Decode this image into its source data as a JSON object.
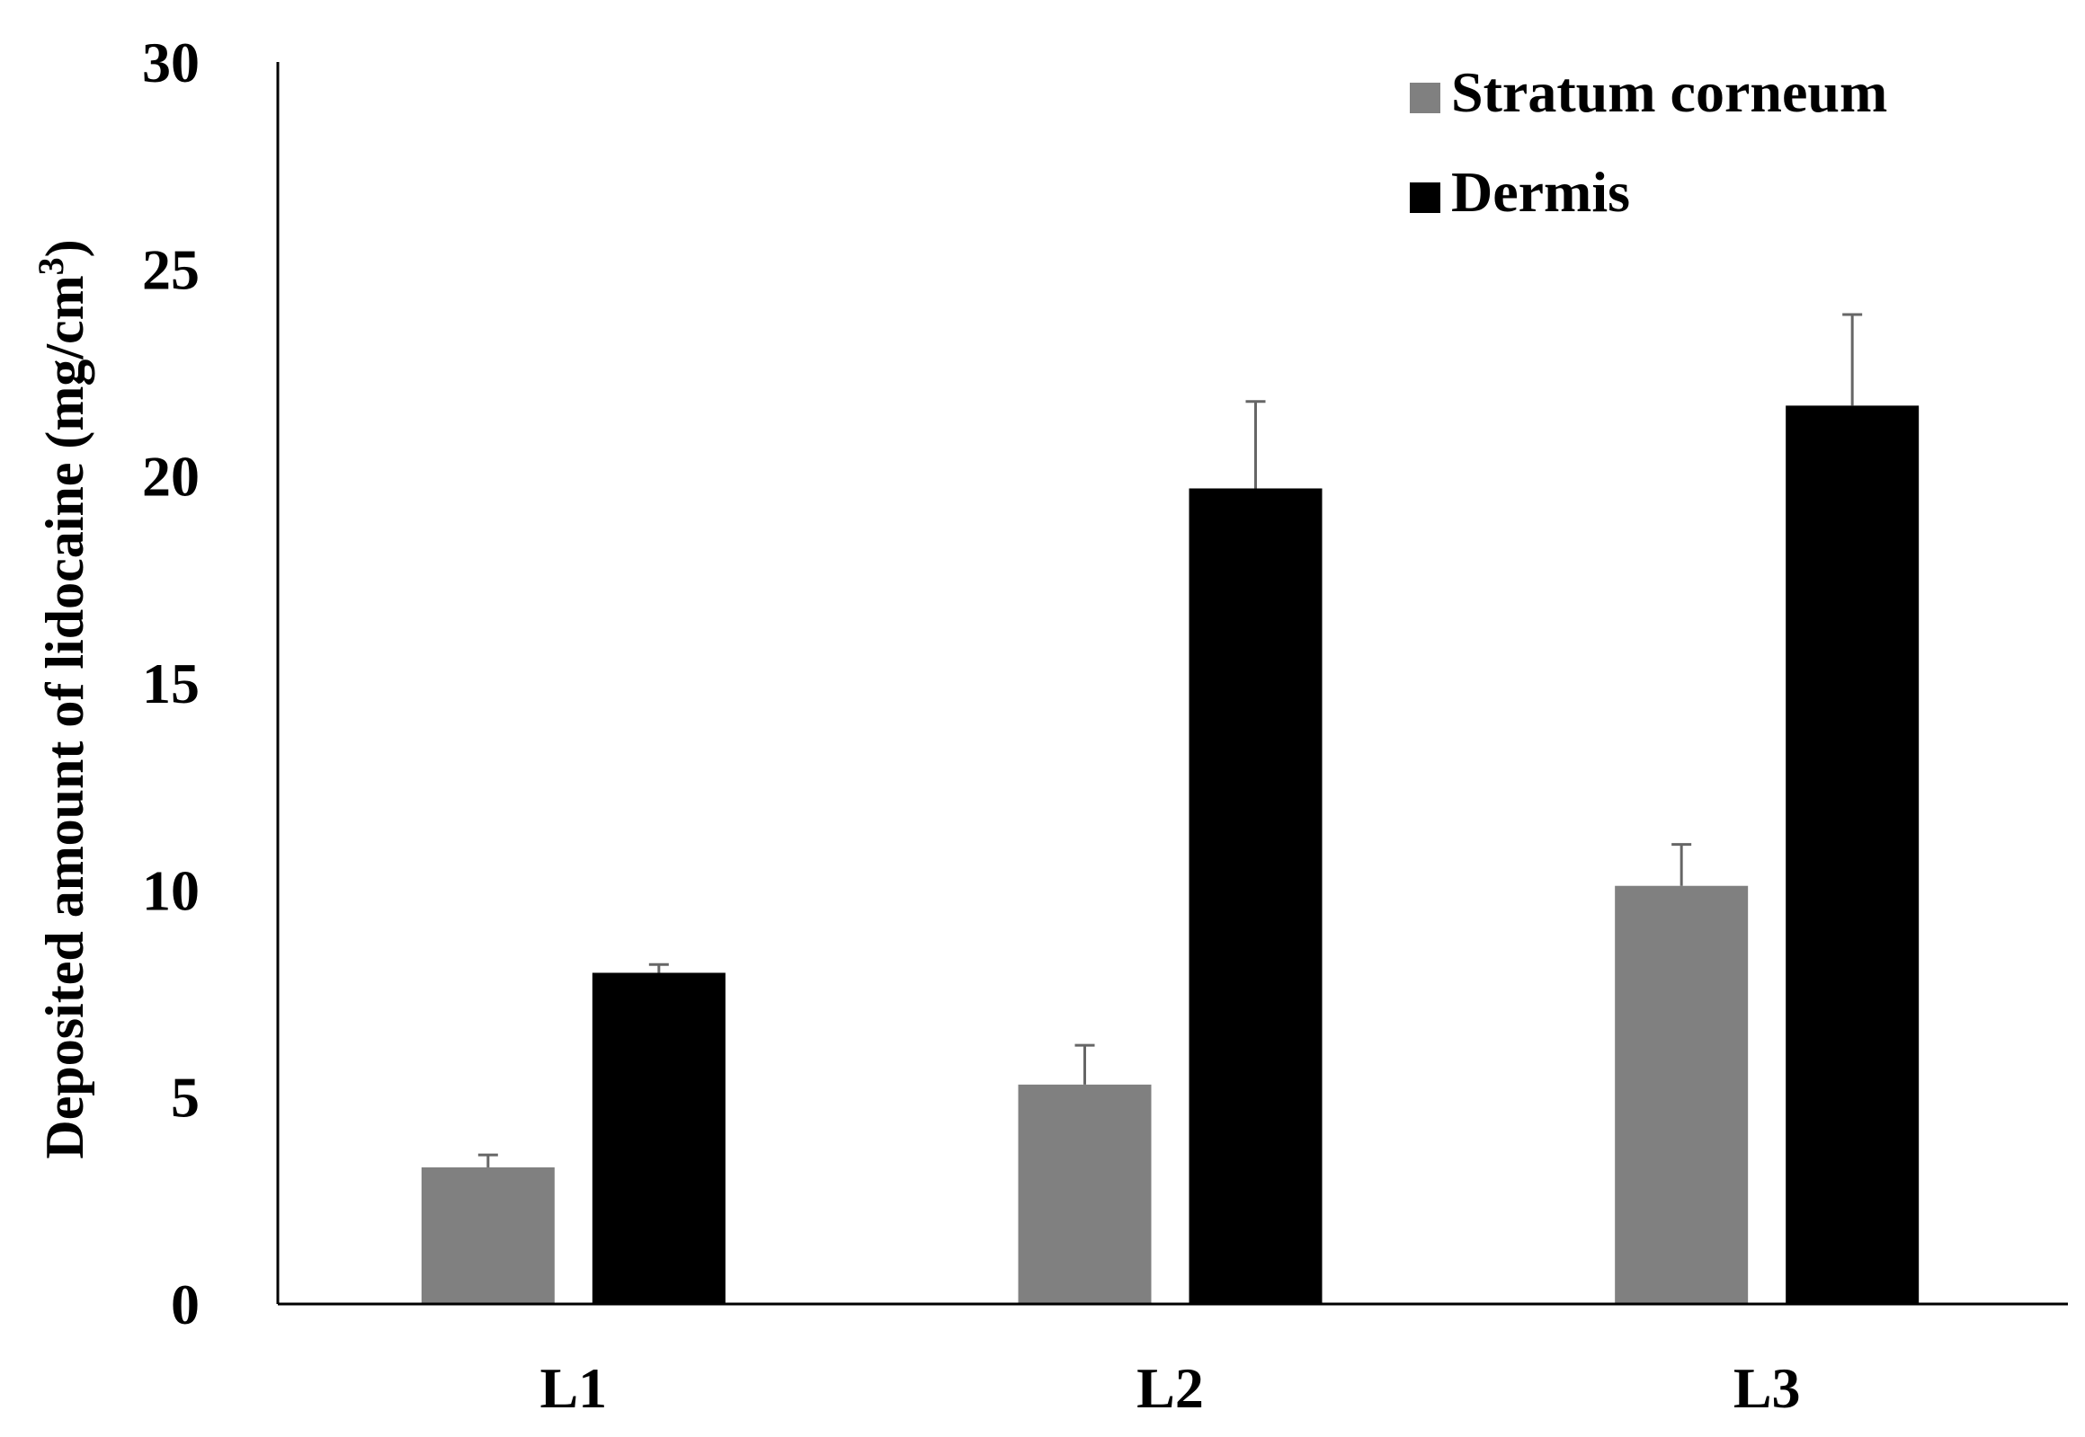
{
  "chart_data": {
    "type": "bar",
    "title": "",
    "xlabel": "",
    "ylabel": "Deposited amount of lidocaine (mg/cm",
    "ylabel_superscript": "3",
    "ylabel_suffix": ")",
    "categories": [
      "L1",
      "L2",
      "L3"
    ],
    "ylim": [
      0,
      30
    ],
    "yticks": [
      0,
      5,
      10,
      15,
      20,
      25,
      30
    ],
    "grid": false,
    "legend_position": "top-right",
    "series": [
      {
        "name": "Stratum corneum",
        "color": "#808080",
        "values": [
          3.3,
          5.3,
          10.1
        ],
        "errors": [
          0.3,
          0.95,
          1.0
        ]
      },
      {
        "name": "Dermis",
        "color": "#000000",
        "values": [
          8.0,
          19.7,
          21.7
        ],
        "errors": [
          0.2,
          2.1,
          2.2
        ]
      }
    ]
  }
}
